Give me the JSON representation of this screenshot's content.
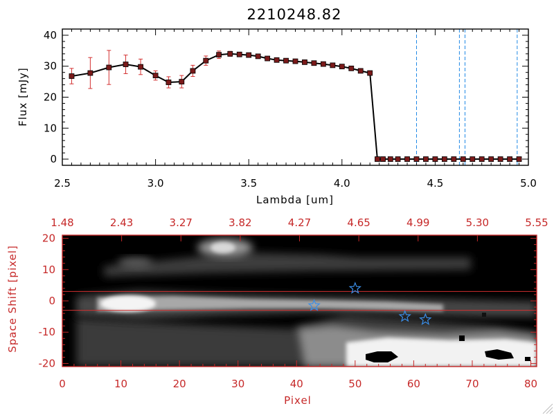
{
  "colors": {
    "line": "#000000",
    "marker": "#7a1a1a",
    "error_bar": "#d32f2f",
    "vline": "#1e88e5",
    "bottom_axis": "#c62828",
    "star": "#3a8ee8",
    "red_hline": "#d32f2f"
  },
  "chart_data": [
    {
      "type": "line",
      "title": "2210248.82",
      "xlabel": "Lambda [um]",
      "ylabel": "Flux [mJy]",
      "xlim": [
        2.5,
        5.0
      ],
      "ylim": [
        -2,
        42
      ],
      "x_ticks": [
        "2.5",
        "3.0",
        "3.5",
        "4.0",
        "4.5",
        "5.0"
      ],
      "y_ticks": [
        "0",
        "10",
        "20",
        "30",
        "40"
      ],
      "x_minor_step": 0.05,
      "y_minor_step": 2,
      "series": [
        {
          "x": [
            2.55,
            2.65,
            2.75,
            2.84,
            2.92,
            3.0,
            3.07,
            3.14,
            3.2,
            3.27,
            3.34,
            3.4,
            3.45,
            3.5,
            3.55,
            3.6,
            3.65,
            3.7,
            3.75,
            3.8,
            3.85,
            3.9,
            3.95,
            4.0,
            4.05,
            4.1,
            4.15,
            4.19,
            4.22,
            4.26,
            4.3,
            4.35,
            4.4,
            4.45,
            4.5,
            4.55,
            4.6,
            4.65,
            4.7,
            4.75,
            4.8,
            4.85,
            4.9,
            4.95
          ],
          "y": [
            26.8,
            27.8,
            29.6,
            30.6,
            29.8,
            27.0,
            24.8,
            25.0,
            28.5,
            31.8,
            33.7,
            34.0,
            33.8,
            33.6,
            33.2,
            32.5,
            32.0,
            31.8,
            31.6,
            31.3,
            31.0,
            30.7,
            30.3,
            29.9,
            29.3,
            28.5,
            27.8,
            0,
            0,
            0,
            0,
            0,
            0,
            0,
            0,
            0,
            0,
            0,
            0,
            0,
            0,
            0,
            0,
            0
          ],
          "yerr": [
            2.5,
            5.0,
            5.5,
            3.0,
            2.5,
            1.5,
            1.8,
            2.0,
            1.8,
            1.5,
            1.2,
            0.8,
            0.5,
            0.5,
            0.5,
            0.5,
            0.5,
            0.5,
            0.5,
            0.5,
            0.5,
            0.5,
            0.5,
            0.5,
            0.5,
            0.5,
            0.5,
            0,
            0,
            0,
            0,
            0,
            0,
            0,
            0,
            0,
            0,
            0,
            0,
            0,
            0,
            0,
            0,
            0
          ]
        }
      ],
      "vlines": [
        4.4,
        4.63,
        4.66,
        4.94
      ]
    },
    {
      "type": "heatmap",
      "xlabel": "Pixel",
      "ylabel": "Space Shift [pixel]",
      "xlim": [
        0,
        81
      ],
      "ylim": [
        -21,
        21
      ],
      "x_ticks": [
        "0",
        "10",
        "20",
        "30",
        "40",
        "50",
        "60",
        "70",
        "80"
      ],
      "y_ticks": [
        "-20",
        "-10",
        "0",
        "10",
        "20"
      ],
      "top_ticks": [
        "1.48",
        "2.43",
        "3.27",
        "3.82",
        "4.27",
        "4.65",
        "4.99",
        "5.30",
        "5.55"
      ],
      "hlines": [
        3,
        -3
      ],
      "stars": [
        {
          "x": 43,
          "y": -1.5
        },
        {
          "x": 50,
          "y": 4
        },
        {
          "x": 58.5,
          "y": -5
        },
        {
          "x": 62,
          "y": -6
        }
      ]
    }
  ]
}
